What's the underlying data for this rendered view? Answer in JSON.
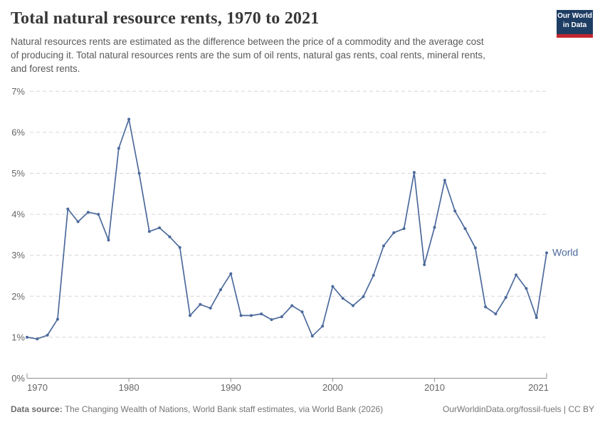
{
  "header": {
    "title": "Total natural resource rents, 1970 to 2021",
    "subtitle_lines": [
      "Natural resources rents are estimated as the difference between the price of a commodity and the average cost",
      "of producing it. Total natural resources rents are the sum of oil rents, natural gas rents, coal rents, mineral rents,",
      "and forest rents."
    ]
  },
  "logo": {
    "line1": "Our World",
    "line2": "in Data"
  },
  "footer": {
    "source_label": "Data source:",
    "source_text": "The Changing Wealth of Nations, World Bank staff estimates, via World Bank (2026)",
    "right_text": "OurWorldinData.org/fossil-fuels | CC BY"
  },
  "colors": {
    "line": "#4C6A9C",
    "entity_label": "#4C6A9C",
    "gridline": "#d5d5d5",
    "axis": "#8f8f8f",
    "tick_label": "#666666",
    "title": "#373737",
    "subtitle": "#595959",
    "footer": "#757575",
    "logo_navy": "#1d3d63",
    "logo_red": "#c1272d"
  },
  "chart_data": {
    "type": "line",
    "title": "Total natural resource rents, 1970 to 2021",
    "xlabel": "",
    "ylabel": "",
    "ylim": [
      0,
      7
    ],
    "ytick_labels": [
      "0%",
      "1%",
      "2%",
      "3%",
      "4%",
      "5%",
      "6%",
      "7%"
    ],
    "xticks": [
      1970,
      1980,
      1990,
      2000,
      2010,
      2021
    ],
    "grid": "dashed horizontal",
    "legend_position": "end-of-line label",
    "series": [
      {
        "name": "World",
        "x": [
          1970,
          1971,
          1972,
          1973,
          1974,
          1975,
          1976,
          1977,
          1978,
          1979,
          1980,
          1981,
          1982,
          1983,
          1984,
          1985,
          1986,
          1987,
          1988,
          1989,
          1990,
          1991,
          1992,
          1993,
          1994,
          1995,
          1996,
          1997,
          1998,
          1999,
          2000,
          2001,
          2002,
          2003,
          2004,
          2005,
          2006,
          2007,
          2008,
          2009,
          2010,
          2011,
          2012,
          2013,
          2014,
          2015,
          2016,
          2017,
          2018,
          2019,
          2020,
          2021
        ],
        "values": [
          1.0,
          0.96,
          1.05,
          1.44,
          4.13,
          3.82,
          4.05,
          4.0,
          3.37,
          5.61,
          6.32,
          5.0,
          3.58,
          3.67,
          3.45,
          3.19,
          1.53,
          1.8,
          1.71,
          2.16,
          2.55,
          1.53,
          1.53,
          1.57,
          1.43,
          1.5,
          1.77,
          1.62,
          1.03,
          1.27,
          2.24,
          1.95,
          1.77,
          1.99,
          2.51,
          3.23,
          3.55,
          3.65,
          5.02,
          2.77,
          3.68,
          4.83,
          4.08,
          3.65,
          3.18,
          1.74,
          1.57,
          1.97,
          2.52,
          2.19,
          1.48,
          3.06
        ]
      }
    ]
  }
}
